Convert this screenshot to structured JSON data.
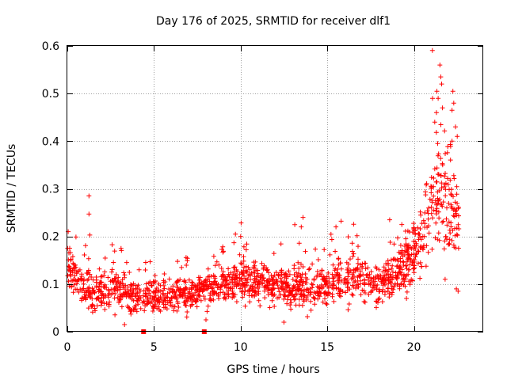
{
  "chart_data": {
    "type": "scatter",
    "title": "Day 176 of 2025, SRMTID for receiver dlf1",
    "xlabel": "GPS time / hours",
    "ylabel": "SRMTID / TECUs",
    "xlim": [
      0,
      24
    ],
    "ylim": [
      0,
      0.6
    ],
    "xticks": [
      0,
      5,
      10,
      15,
      20
    ],
    "yticks": [
      0,
      0.1,
      0.2,
      0.3,
      0.4,
      0.5,
      0.6
    ],
    "xtick_labels": [
      "0",
      "5",
      "10",
      "15",
      "20"
    ],
    "ytick_labels": [
      "0",
      "0.1",
      "0.2",
      "0.3",
      "0.4",
      "0.5",
      "0.6"
    ],
    "grid": true,
    "marker": "+",
    "color": "#ff0000",
    "series": [
      {
        "name": "SRMTID",
        "profile": [
          {
            "x": 0.0,
            "mean": 0.15,
            "spread": 0.05
          },
          {
            "x": 0.5,
            "mean": 0.11,
            "spread": 0.05
          },
          {
            "x": 1.0,
            "mean": 0.09,
            "spread": 0.04
          },
          {
            "x": 2.0,
            "mean": 0.085,
            "spread": 0.035
          },
          {
            "x": 3.0,
            "mean": 0.09,
            "spread": 0.035
          },
          {
            "x": 4.0,
            "mean": 0.07,
            "spread": 0.03
          },
          {
            "x": 5.0,
            "mean": 0.075,
            "spread": 0.03
          },
          {
            "x": 6.0,
            "mean": 0.08,
            "spread": 0.03
          },
          {
            "x": 7.0,
            "mean": 0.075,
            "spread": 0.03
          },
          {
            "x": 8.0,
            "mean": 0.09,
            "spread": 0.03
          },
          {
            "x": 9.0,
            "mean": 0.1,
            "spread": 0.035
          },
          {
            "x": 10.0,
            "mean": 0.11,
            "spread": 0.04
          },
          {
            "x": 11.0,
            "mean": 0.1,
            "spread": 0.035
          },
          {
            "x": 12.0,
            "mean": 0.1,
            "spread": 0.035
          },
          {
            "x": 13.0,
            "mean": 0.1,
            "spread": 0.04
          },
          {
            "x": 14.0,
            "mean": 0.09,
            "spread": 0.035
          },
          {
            "x": 15.0,
            "mean": 0.1,
            "spread": 0.04
          },
          {
            "x": 16.0,
            "mean": 0.11,
            "spread": 0.045
          },
          {
            "x": 17.0,
            "mean": 0.11,
            "spread": 0.04
          },
          {
            "x": 18.0,
            "mean": 0.1,
            "spread": 0.035
          },
          {
            "x": 19.0,
            "mean": 0.12,
            "spread": 0.045
          },
          {
            "x": 19.5,
            "mean": 0.14,
            "spread": 0.05
          },
          {
            "x": 20.0,
            "mean": 0.17,
            "spread": 0.06
          },
          {
            "x": 20.5,
            "mean": 0.2,
            "spread": 0.07
          },
          {
            "x": 21.0,
            "mean": 0.27,
            "spread": 0.1
          },
          {
            "x": 21.5,
            "mean": 0.3,
            "spread": 0.12
          },
          {
            "x": 22.0,
            "mean": 0.28,
            "spread": 0.1
          },
          {
            "x": 22.6,
            "mean": 0.22,
            "spread": 0.08
          }
        ],
        "outliers": [
          {
            "x": 1.25,
            "y": 0.285
          },
          {
            "x": 1.25,
            "y": 0.247
          },
          {
            "x": 1.3,
            "y": 0.203
          },
          {
            "x": 0.05,
            "y": 0.21
          },
          {
            "x": 3.1,
            "y": 0.175
          },
          {
            "x": 9.7,
            "y": 0.205
          },
          {
            "x": 10.0,
            "y": 0.2
          },
          {
            "x": 13.6,
            "y": 0.24
          },
          {
            "x": 13.5,
            "y": 0.22
          },
          {
            "x": 15.8,
            "y": 0.232
          },
          {
            "x": 15.5,
            "y": 0.22
          },
          {
            "x": 18.6,
            "y": 0.235
          },
          {
            "x": 19.3,
            "y": 0.225
          },
          {
            "x": 21.5,
            "y": 0.56
          },
          {
            "x": 21.55,
            "y": 0.535
          },
          {
            "x": 21.6,
            "y": 0.52
          },
          {
            "x": 21.4,
            "y": 0.49
          },
          {
            "x": 22.25,
            "y": 0.505
          },
          {
            "x": 22.3,
            "y": 0.48
          },
          {
            "x": 21.65,
            "y": 0.47
          },
          {
            "x": 22.4,
            "y": 0.43
          },
          {
            "x": 22.5,
            "y": 0.41
          },
          {
            "x": 21.3,
            "y": 0.46
          },
          {
            "x": 22.2,
            "y": 0.465
          },
          {
            "x": 22.2,
            "y": 0.4
          },
          {
            "x": 21.2,
            "y": 0.44
          },
          {
            "x": 22.45,
            "y": 0.09
          },
          {
            "x": 22.55,
            "y": 0.085
          },
          {
            "x": 21.8,
            "y": 0.11
          },
          {
            "x": 12.5,
            "y": 0.02
          },
          {
            "x": 3.3,
            "y": 0.015
          },
          {
            "x": 8.0,
            "y": 0.025
          }
        ]
      }
    ],
    "gap_markers": [
      {
        "x": 4.4,
        "y": 0.0
      },
      {
        "x": 7.9,
        "y": 0.0
      }
    ]
  }
}
